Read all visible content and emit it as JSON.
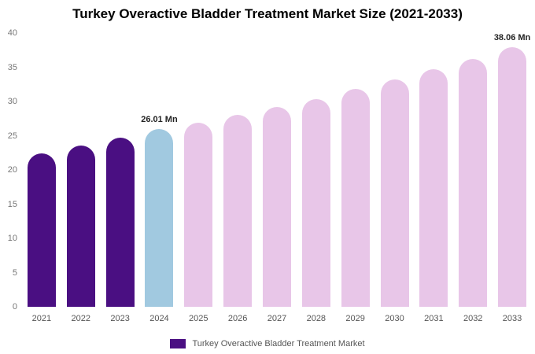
{
  "chart_data": {
    "type": "bar",
    "title": "Turkey Overactive Bladder Treatment Market Size (2021-2033)",
    "xlabel": "",
    "ylabel": "",
    "ylim": [
      0,
      40
    ],
    "yticks": [
      0,
      5,
      10,
      15,
      20,
      25,
      30,
      35,
      40
    ],
    "grid": false,
    "legend_position": "bottom",
    "categories": [
      "2021",
      "2022",
      "2023",
      "2024",
      "2025",
      "2026",
      "2027",
      "2028",
      "2029",
      "2030",
      "2031",
      "2032",
      "2033"
    ],
    "values": [
      22.4,
      23.6,
      24.7,
      26.01,
      26.9,
      28.0,
      29.2,
      30.4,
      31.8,
      33.2,
      34.7,
      36.2,
      38.06
    ],
    "bar_colors": [
      "#4a0f82",
      "#4a0f82",
      "#4a0f82",
      "#a1c9e0",
      "#e8c6e8",
      "#e8c6e8",
      "#e8c6e8",
      "#e8c6e8",
      "#e8c6e8",
      "#e8c6e8",
      "#e8c6e8",
      "#e8c6e8",
      "#e8c6e8"
    ],
    "annotations": [
      {
        "index": 3,
        "text": "26.01 Mn"
      },
      {
        "index": 12,
        "text": "38.06 Mn"
      }
    ],
    "colors": {
      "historical": "#4a0f82",
      "highlight_current": "#a1c9e0",
      "forecast": "#e8c6e8"
    }
  },
  "legend": {
    "label": "Turkey Overactive Bladder Treatment Market",
    "color": "#4a0f82"
  }
}
